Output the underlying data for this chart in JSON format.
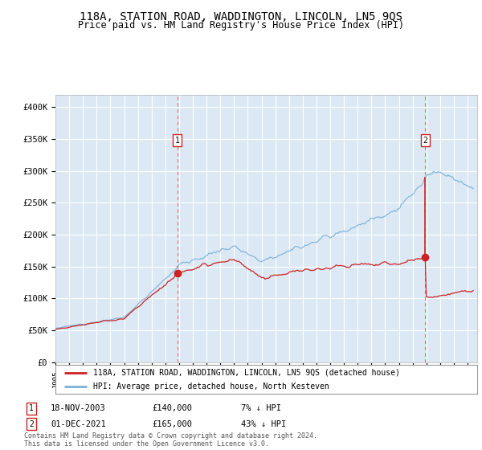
{
  "title": "118A, STATION ROAD, WADDINGTON, LINCOLN, LN5 9QS",
  "subtitle": "Price paid vs. HM Land Registry's House Price Index (HPI)",
  "title_fontsize": 10,
  "subtitle_fontsize": 8.5,
  "bg_color": "#dce9f5",
  "grid_color": "#ffffff",
  "line_color_hpi": "#7ab0d8",
  "line_color_paid": "#cc2222",
  "ylabel_ticks": [
    "£0",
    "£50K",
    "£100K",
    "£150K",
    "£200K",
    "£250K",
    "£300K",
    "£350K",
    "£400K"
  ],
  "ytick_values": [
    0,
    50000,
    100000,
    150000,
    200000,
    250000,
    300000,
    350000,
    400000
  ],
  "ylim": [
    0,
    420000
  ],
  "xlim_start": 1995.0,
  "xlim_end": 2025.7,
  "xtick_years": [
    1995,
    1996,
    1997,
    1998,
    1999,
    2000,
    2001,
    2002,
    2003,
    2004,
    2005,
    2006,
    2007,
    2008,
    2009,
    2010,
    2011,
    2012,
    2013,
    2014,
    2015,
    2016,
    2017,
    2018,
    2019,
    2020,
    2021,
    2022,
    2023,
    2024,
    2025
  ],
  "marker1_x": 2003.88,
  "marker1_y": 140000,
  "marker2_x": 2021.92,
  "marker2_y": 165000,
  "annotation1_date": "18-NOV-2003",
  "annotation1_price": "£140,000",
  "annotation1_hpi": "7% ↓ HPI",
  "annotation2_date": "01-DEC-2021",
  "annotation2_price": "£165,000",
  "annotation2_hpi": "43% ↓ HPI",
  "legend_label1": "118A, STATION ROAD, WADDINGTON, LINCOLN, LN5 9QS (detached house)",
  "legend_label2": "HPI: Average price, detached house, North Kesteven",
  "footer": "Contains HM Land Registry data © Crown copyright and database right 2024.\nThis data is licensed under the Open Government Licence v3.0."
}
